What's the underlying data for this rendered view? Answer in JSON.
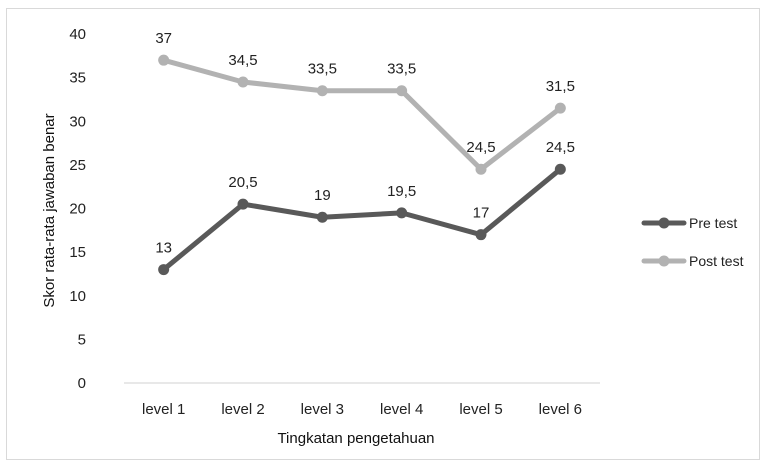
{
  "chart_data": {
    "type": "line",
    "title": "",
    "xlabel": "Tingkatan  pengetahuan",
    "ylabel": "Skor rata-rata jawaban benar",
    "categories": [
      "level 1",
      "level 2",
      "level 3",
      "level 4",
      "level 5",
      "level 6"
    ],
    "ylim": [
      0,
      40
    ],
    "yticks": [
      0,
      5,
      10,
      15,
      20,
      25,
      30,
      35,
      40
    ],
    "grid": false,
    "legend": "right",
    "series": [
      {
        "name": "Pre test",
        "color": "#595959",
        "values": [
          13,
          20.5,
          19,
          19.5,
          17,
          24.5
        ],
        "labels": [
          "13",
          "20,5",
          "19",
          "19,5",
          "17",
          "24,5"
        ]
      },
      {
        "name": "Post test",
        "color": "#b2b2b2",
        "values": [
          37,
          34.5,
          33.5,
          33.5,
          24.5,
          31.5
        ],
        "labels": [
          "37",
          "34,5",
          "33,5",
          "33,5",
          "24,5",
          "31,5"
        ]
      }
    ]
  }
}
